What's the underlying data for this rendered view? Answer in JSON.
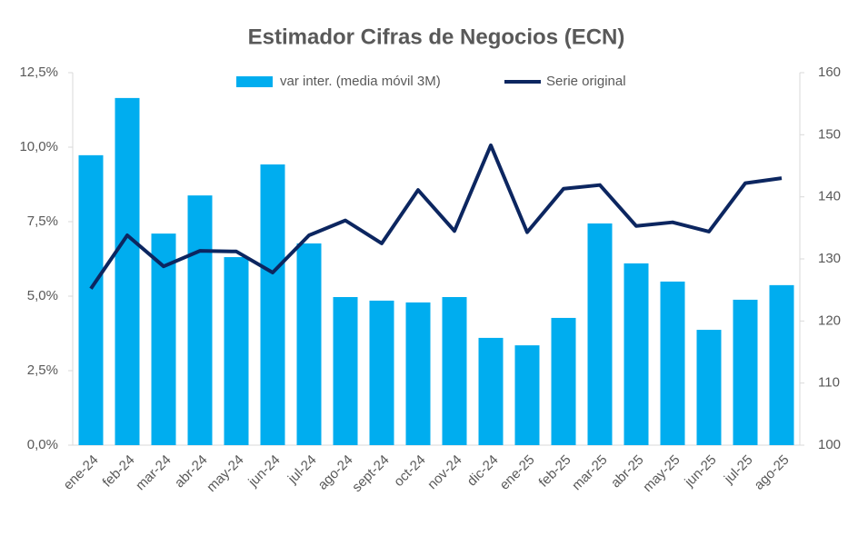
{
  "chart_data": {
    "type": "bar-line",
    "title": "Estimador Cifras de Negocios (ECN)",
    "categories": [
      "ene-24",
      "feb-24",
      "mar-24",
      "abr-24",
      "may-24",
      "jun-24",
      "jul-24",
      "ago-24",
      "sept-24",
      "oct-24",
      "nov-24",
      "dic-24",
      "ene-25",
      "feb-25",
      "mar-25",
      "abr-25",
      "may-25",
      "jun-25",
      "jul-25",
      "ago-25"
    ],
    "series": [
      {
        "name": "var inter. (media móvil 3M)",
        "type": "bar",
        "color": "#00adef",
        "values": [
          9.73,
          11.65,
          7.1,
          8.38,
          6.31,
          9.42,
          6.77,
          4.97,
          4.85,
          4.79,
          4.97,
          3.6,
          3.35,
          4.27,
          7.44,
          6.1,
          5.49,
          3.87,
          4.88,
          5.37
        ]
      },
      {
        "name": "Serie original",
        "type": "line",
        "axis": "y2",
        "color": "#0c2660",
        "values": [
          125.2,
          133.8,
          128.8,
          131.3,
          131.2,
          127.8,
          133.8,
          136.2,
          132.5,
          141.1,
          134.5,
          148.3,
          134.3,
          141.3,
          141.9,
          135.3,
          135.9,
          134.4,
          142.2,
          143.0
        ]
      }
    ],
    "ylim": [
      0,
      12.5
    ],
    "yticks": [
      {
        "value": 0,
        "label": "0,0%"
      },
      {
        "value": 2.5,
        "label": "2,5%"
      },
      {
        "value": 5,
        "label": "5,0%"
      },
      {
        "value": 7.5,
        "label": "7,5%"
      },
      {
        "value": 10,
        "label": "10,0%"
      },
      {
        "value": 12.5,
        "label": "12,5%"
      }
    ],
    "y2lim": [
      100,
      160
    ],
    "y2ticks": [
      100,
      110,
      120,
      130,
      140,
      150,
      160
    ]
  }
}
